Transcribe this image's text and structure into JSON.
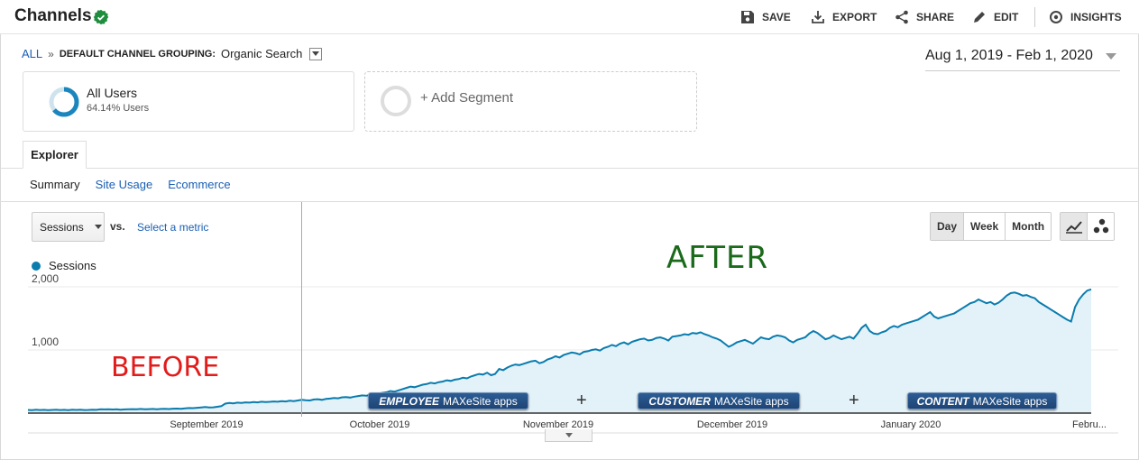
{
  "header": {
    "title": "Channels",
    "actions": [
      {
        "label": "SAVE",
        "icon": "save-icon"
      },
      {
        "label": "EXPORT",
        "icon": "export-icon"
      },
      {
        "label": "SHARE",
        "icon": "share-icon"
      },
      {
        "label": "EDIT",
        "icon": "pencil-icon"
      },
      {
        "label": "INSIGHTS",
        "icon": "insights-icon"
      }
    ]
  },
  "breadcrumb": {
    "all": "ALL",
    "sep": "»",
    "grouping": "DEFAULT CHANNEL GROUPING:",
    "value": "Organic Search"
  },
  "date_range": "Aug 1, 2019 - Feb 1, 2020",
  "segments": {
    "active": {
      "name": "All Users",
      "sub": "64.14% Users",
      "fraction": 0.6414
    },
    "add_label": "+ Add Segment"
  },
  "tabs": {
    "active": "Explorer"
  },
  "subtabs": [
    "Summary",
    "Site Usage",
    "Ecommerce"
  ],
  "controls": {
    "metric": "Sessions",
    "vs": "vs.",
    "select_metric": "Select a metric",
    "granularity": [
      "Day",
      "Week",
      "Month"
    ],
    "granularity_active": "Day"
  },
  "annotations": {
    "after": "AFTER",
    "before": "BEFORE",
    "badges": [
      {
        "bold": "EMPLOYEE",
        "rest": "MAXeSite apps"
      },
      {
        "bold": "CUSTOMER",
        "rest": "MAXeSite apps"
      },
      {
        "bold": "CONTENT",
        "rest": "MAXeSite apps"
      }
    ],
    "plus": "+"
  },
  "colors": {
    "line": "#0a7cae",
    "fill": "#e3f1f8",
    "after": "#1b6a1b",
    "before": "#e21b1b",
    "link": "#1a5fb4"
  },
  "chart_data": {
    "type": "area",
    "series": [
      {
        "name": "Sessions"
      }
    ],
    "y_ticks": [
      "2,000",
      "1,000"
    ],
    "ylim": [
      0,
      2000
    ],
    "x_labels": [
      "September 2019",
      "October 2019",
      "November 2019",
      "December 2019",
      "January 2020",
      "Febru..."
    ],
    "values": [
      50,
      45,
      55,
      48,
      52,
      46,
      50,
      55,
      48,
      52,
      47,
      55,
      50,
      53,
      48,
      50,
      54,
      52,
      60,
      58,
      62,
      57,
      60,
      55,
      58,
      60,
      63,
      62,
      65,
      60,
      63,
      66,
      62,
      65,
      68,
      64,
      70,
      72,
      68,
      75,
      80,
      78,
      85,
      90,
      95,
      88,
      92,
      100,
      110,
      150,
      160,
      155,
      165,
      160,
      170,
      165,
      175,
      170,
      180,
      175,
      178,
      185,
      180,
      190,
      185,
      195,
      190,
      200,
      210,
      205,
      200,
      215,
      220,
      210,
      225,
      230,
      240,
      235,
      250,
      255,
      245,
      260,
      270,
      280,
      275,
      290,
      300,
      310,
      320,
      330,
      350,
      340,
      360,
      380,
      400,
      420,
      410,
      430,
      450,
      460,
      480,
      470,
      490,
      500,
      520,
      510,
      530,
      540,
      560,
      550,
      580,
      600,
      620,
      610,
      640,
      600,
      620,
      700,
      680,
      720,
      750,
      770,
      760,
      780,
      800,
      820,
      830,
      790,
      810,
      850,
      870,
      900,
      880,
      920,
      940,
      960,
      950,
      930,
      970,
      980,
      1000,
      1010,
      990,
      1030,
      1050,
      1080,
      1060,
      1100,
      1120,
      1090,
      1130,
      1150,
      1170,
      1180,
      1150,
      1160,
      1190,
      1200,
      1180,
      1150,
      1210,
      1220,
      1230,
      1250,
      1240,
      1270,
      1260,
      1280,
      1250,
      1230,
      1200,
      1180,
      1150,
      1100,
      1050,
      1080,
      1120,
      1140,
      1160,
      1130,
      1100,
      1150,
      1200,
      1180,
      1170,
      1210,
      1230,
      1220,
      1200,
      1150,
      1120,
      1160,
      1180,
      1200,
      1260,
      1300,
      1270,
      1220,
      1170,
      1190,
      1230,
      1200,
      1170,
      1190,
      1210,
      1180,
      1260,
      1350,
      1400,
      1300,
      1260,
      1250,
      1280,
      1300,
      1350,
      1380,
      1360,
      1400,
      1420,
      1440,
      1460,
      1480,
      1520,
      1560,
      1600,
      1530,
      1500,
      1520,
      1540,
      1560,
      1580,
      1620,
      1660,
      1700,
      1740,
      1760,
      1800,
      1770,
      1740,
      1760,
      1720,
      1750,
      1800,
      1860,
      1900,
      1910,
      1890,
      1860,
      1870,
      1840,
      1820,
      1760,
      1720,
      1680,
      1640,
      1600,
      1560,
      1520,
      1480,
      1450,
      1680,
      1800,
      1880,
      1940,
      1960
    ]
  }
}
